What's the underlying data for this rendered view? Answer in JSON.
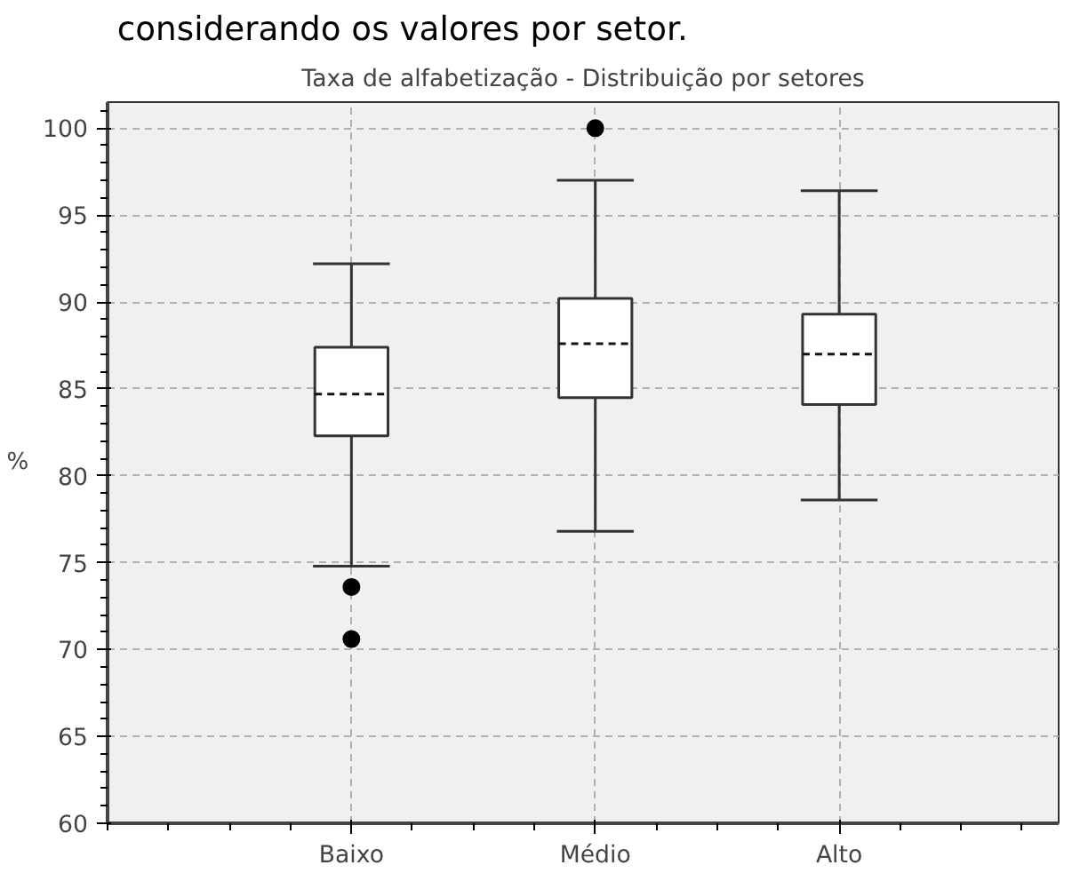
{
  "chart_data": {
    "type": "box",
    "title": "Taxa de alfabetização - Distribuição por setores",
    "ylabel": "%",
    "annotations": [
      "considerando os valores por setor."
    ],
    "categories": [
      "Baixo",
      "Médio",
      "Alto"
    ],
    "boxes": [
      {
        "low": 74.8,
        "q1": 82.3,
        "median": 84.7,
        "q3": 87.4,
        "high": 92.2,
        "outliers": [
          73.6,
          70.6
        ]
      },
      {
        "low": 76.8,
        "q1": 84.5,
        "median": 87.6,
        "q3": 90.2,
        "high": 97.0,
        "outliers": [
          100.0
        ]
      },
      {
        "low": 78.6,
        "q1": 84.1,
        "median": 87.0,
        "q3": 89.3,
        "high": 96.4
      }
    ],
    "ylim": [
      60,
      101.5
    ],
    "yticks": [
      60,
      65,
      70,
      75,
      80,
      85,
      90,
      95,
      100
    ],
    "grid": true
  }
}
